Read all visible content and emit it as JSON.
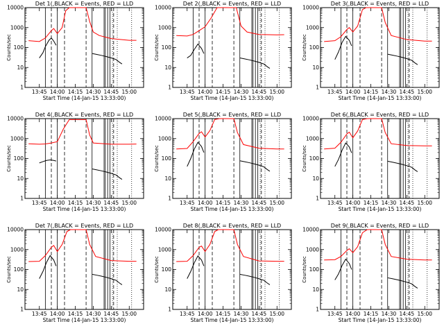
{
  "chart_data": {
    "type": "line",
    "ylabel": "Counts/sec",
    "xlabel": "Start Time (14-Jan-15 13:33:00)",
    "xticks": [
      "13:45",
      "14:00",
      "14:15",
      "14:30",
      "14:45",
      "15:00"
    ],
    "yticks": [
      "1",
      "10",
      "100",
      "1000",
      "10000"
    ],
    "yscale": "log",
    "ylim": [
      1,
      10000
    ],
    "xlim": [
      "13:33",
      "15:12"
    ],
    "series_colors": {
      "events": "#000000",
      "lld": "#ff0000"
    },
    "solid_vlines": [
      "13:50",
      "14:00",
      "14:29",
      "14:39",
      "14:40",
      "14:42",
      "14:44"
    ],
    "dashed_vlines": [
      "13:55",
      "14:06",
      "14:24",
      "14:47"
    ],
    "dotted_vlines": [
      "14:46",
      "14:50",
      "15:02"
    ],
    "panels": [
      {
        "title": "Det 1(,BLACK = Events, RED = LLD",
        "events": [
          [
            "13:45",
            30
          ],
          [
            "13:48",
            55
          ],
          [
            "13:50",
            110
          ],
          [
            "13:53",
            230
          ],
          [
            "13:55",
            300
          ],
          [
            "13:57",
            210
          ],
          [
            "13:59",
            130
          ]
        ],
        "lld": [
          [
            "13:36",
            220
          ],
          [
            "13:45",
            200
          ],
          [
            "13:50",
            300
          ],
          [
            "13:55",
            700
          ],
          [
            "13:57",
            900
          ],
          [
            "14:00",
            500
          ],
          [
            "14:04",
            1000
          ],
          [
            "14:07",
            7000
          ],
          [
            "14:10",
            10000
          ],
          [
            "14:24",
            10000
          ],
          [
            "14:27",
            2000
          ],
          [
            "14:30",
            600
          ],
          [
            "14:35",
            400
          ],
          [
            "14:45",
            280
          ],
          [
            "15:00",
            230
          ],
          [
            "15:06",
            230
          ]
        ]
      },
      {
        "title": "Det 2(,BLACK = Events, RED = LLD",
        "events": [
          [
            "13:45",
            30
          ],
          [
            "13:48",
            40
          ],
          [
            "13:51",
            80
          ],
          [
            "13:54",
            150
          ],
          [
            "13:57",
            90
          ],
          [
            "13:59",
            50
          ]
        ],
        "lld": [
          [
            "13:36",
            400
          ],
          [
            "13:45",
            380
          ],
          [
            "13:50",
            450
          ],
          [
            "13:55",
            700
          ],
          [
            "14:00",
            1100
          ],
          [
            "14:05",
            3000
          ],
          [
            "14:10",
            10000
          ],
          [
            "14:26",
            10000
          ],
          [
            "14:30",
            1200
          ],
          [
            "14:35",
            600
          ],
          [
            "14:45",
            450
          ],
          [
            "15:00",
            430
          ],
          [
            "15:06",
            440
          ]
        ]
      },
      {
        "title": "Det 3(,BLACK = Events, RED = LLD",
        "events": [
          [
            "13:45",
            25
          ],
          [
            "13:48",
            60
          ],
          [
            "13:51",
            180
          ],
          [
            "13:54",
            360
          ],
          [
            "13:57",
            230
          ],
          [
            "13:59",
            120
          ]
        ],
        "lld": [
          [
            "13:36",
            200
          ],
          [
            "13:45",
            220
          ],
          [
            "13:50",
            350
          ],
          [
            "13:55",
            800
          ],
          [
            "13:57",
            1000
          ],
          [
            "14:00",
            600
          ],
          [
            "14:04",
            1200
          ],
          [
            "14:08",
            8000
          ],
          [
            "14:11",
            10000
          ],
          [
            "14:24",
            10000
          ],
          [
            "14:27",
            1800
          ],
          [
            "14:32",
            400
          ],
          [
            "14:45",
            250
          ],
          [
            "15:00",
            210
          ],
          [
            "15:06",
            210
          ]
        ]
      },
      {
        "title": "Det 4(,BLACK = Events, RED = LLD",
        "events": [
          [
            "13:45",
            60
          ],
          [
            "13:48",
            70
          ],
          [
            "13:51",
            80
          ],
          [
            "13:54",
            85
          ],
          [
            "13:57",
            80
          ],
          [
            "13:59",
            75
          ]
        ],
        "lld": [
          [
            "13:36",
            550
          ],
          [
            "13:45",
            520
          ],
          [
            "13:50",
            540
          ],
          [
            "13:55",
            600
          ],
          [
            "14:00",
            700
          ],
          [
            "14:05",
            3000
          ],
          [
            "14:10",
            9000
          ],
          [
            "14:24",
            9000
          ],
          [
            "14:27",
            1500
          ],
          [
            "14:30",
            600
          ],
          [
            "14:45",
            520
          ],
          [
            "15:00",
            520
          ],
          [
            "15:06",
            530
          ]
        ]
      },
      {
        "title": "Det 5(,BLACK = Events, RED = LLD",
        "events": [
          [
            "13:45",
            40
          ],
          [
            "13:48",
            100
          ],
          [
            "13:51",
            300
          ],
          [
            "13:54",
            650
          ],
          [
            "13:57",
            400
          ],
          [
            "13:59",
            200
          ]
        ],
        "lld": [
          [
            "13:36",
            300
          ],
          [
            "13:45",
            320
          ],
          [
            "13:50",
            700
          ],
          [
            "13:55",
            1800
          ],
          [
            "13:57",
            2200
          ],
          [
            "14:00",
            1200
          ],
          [
            "14:04",
            2500
          ],
          [
            "14:08",
            9000
          ],
          [
            "14:12",
            10000
          ],
          [
            "14:24",
            10000
          ],
          [
            "14:27",
            2000
          ],
          [
            "14:32",
            500
          ],
          [
            "14:45",
            330
          ],
          [
            "15:00",
            300
          ],
          [
            "15:06",
            300
          ]
        ]
      },
      {
        "title": "Det 6(,BLACK = Events, RED = LLD",
        "events": [
          [
            "13:45",
            40
          ],
          [
            "13:48",
            90
          ],
          [
            "13:51",
            260
          ],
          [
            "13:54",
            600
          ],
          [
            "13:57",
            380
          ],
          [
            "13:59",
            190
          ]
        ],
        "lld": [
          [
            "13:36",
            300
          ],
          [
            "13:45",
            330
          ],
          [
            "13:50",
            650
          ],
          [
            "13:55",
            1700
          ],
          [
            "13:57",
            2100
          ],
          [
            "14:00",
            1100
          ],
          [
            "14:04",
            2400
          ],
          [
            "14:08",
            9000
          ],
          [
            "14:12",
            10000
          ],
          [
            "14:24",
            10000
          ],
          [
            "14:27",
            2000
          ],
          [
            "14:32",
            550
          ],
          [
            "14:45",
            450
          ],
          [
            "15:00",
            430
          ],
          [
            "15:06",
            430
          ]
        ]
      },
      {
        "title": "Det 7(,BLACK = Events, RED = LLD",
        "events": [
          [
            "13:45",
            35
          ],
          [
            "13:48",
            80
          ],
          [
            "13:51",
            230
          ],
          [
            "13:54",
            500
          ],
          [
            "13:57",
            300
          ],
          [
            "13:59",
            150
          ]
        ],
        "lld": [
          [
            "13:36",
            250
          ],
          [
            "13:45",
            260
          ],
          [
            "13:50",
            500
          ],
          [
            "13:55",
            1300
          ],
          [
            "13:57",
            1600
          ],
          [
            "14:00",
            800
          ],
          [
            "14:04",
            1800
          ],
          [
            "14:08",
            8000
          ],
          [
            "14:11",
            10000
          ],
          [
            "14:24",
            10000
          ],
          [
            "14:27",
            1800
          ],
          [
            "14:32",
            450
          ],
          [
            "14:45",
            280
          ],
          [
            "15:00",
            260
          ],
          [
            "15:06",
            260
          ]
        ]
      },
      {
        "title": "Det 8(,BLACK = Events, RED = LLD",
        "events": [
          [
            "13:45",
            35
          ],
          [
            "13:48",
            80
          ],
          [
            "13:51",
            220
          ],
          [
            "13:54",
            480
          ],
          [
            "13:57",
            300
          ],
          [
            "13:59",
            150
          ]
        ],
        "lld": [
          [
            "13:36",
            250
          ],
          [
            "13:45",
            260
          ],
          [
            "13:50",
            500
          ],
          [
            "13:55",
            1300
          ],
          [
            "13:57",
            1500
          ],
          [
            "14:00",
            800
          ],
          [
            "14:04",
            1800
          ],
          [
            "14:08",
            8000
          ],
          [
            "14:11",
            10000
          ],
          [
            "14:24",
            10000
          ],
          [
            "14:27",
            1800
          ],
          [
            "14:32",
            450
          ],
          [
            "14:45",
            270
          ],
          [
            "15:00",
            260
          ],
          [
            "15:06",
            260
          ]
        ]
      },
      {
        "title": "Det 9(,BLACK = Events, RED = LLD",
        "events": [
          [
            "13:45",
            30
          ],
          [
            "13:48",
            60
          ],
          [
            "13:51",
            160
          ],
          [
            "13:54",
            330
          ],
          [
            "13:57",
            200
          ],
          [
            "13:59",
            100
          ]
        ],
        "lld": [
          [
            "13:36",
            300
          ],
          [
            "13:45",
            310
          ],
          [
            "13:50",
            450
          ],
          [
            "13:55",
            900
          ],
          [
            "13:57",
            1100
          ],
          [
            "14:00",
            700
          ],
          [
            "14:04",
            1400
          ],
          [
            "14:08",
            7000
          ],
          [
            "14:12",
            10000
          ],
          [
            "14:24",
            10000
          ],
          [
            "14:27",
            1800
          ],
          [
            "14:32",
            450
          ],
          [
            "14:45",
            330
          ],
          [
            "15:00",
            300
          ],
          [
            "15:06",
            300
          ]
        ]
      }
    ],
    "late_events_pattern": [
      [
        "14:29",
        50
      ],
      [
        "14:33",
        45
      ],
      [
        "14:37",
        40
      ],
      [
        "14:41",
        35
      ],
      [
        "14:45",
        30
      ],
      [
        "14:49",
        25
      ],
      [
        "14:52",
        18
      ],
      [
        "14:54",
        15
      ]
    ]
  }
}
